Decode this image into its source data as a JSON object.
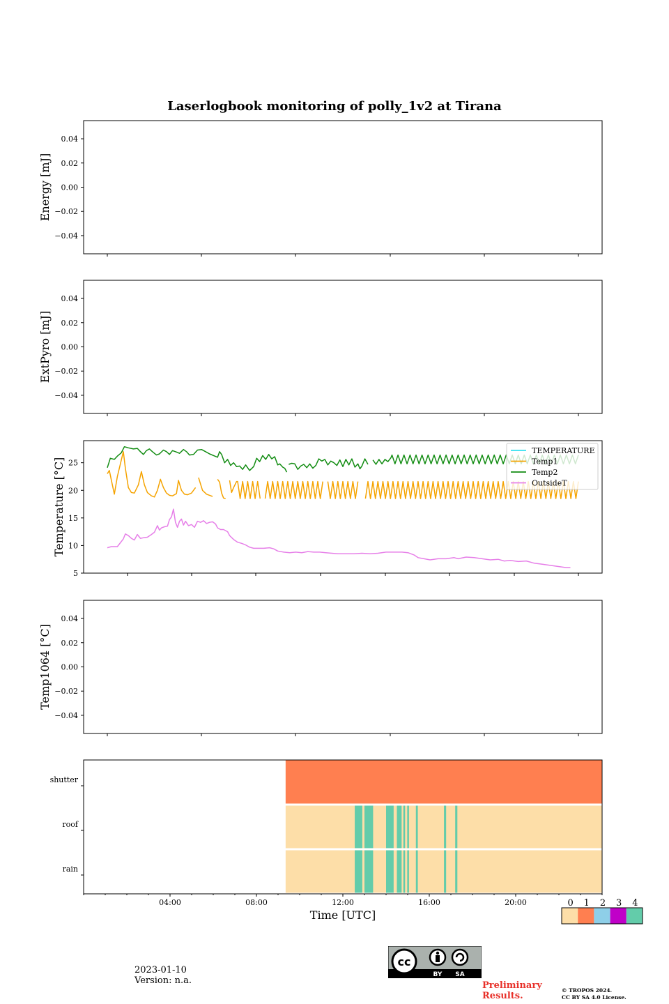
{
  "chart_data": [
    {
      "type": "line",
      "title": "Laserlogbook monitoring of polly_1v2 at Tirana",
      "ylabel": "Energy [mJ]",
      "yticks": [
        "0.04",
        "0.02",
        "0.00",
        "−0.02",
        "−0.04"
      ],
      "ylim": [
        -0.055,
        0.055
      ],
      "series": []
    },
    {
      "type": "line",
      "ylabel": "ExtPyro [mJ]",
      "yticks": [
        "0.04",
        "0.02",
        "0.00",
        "−0.02",
        "−0.04"
      ],
      "ylim": [
        -0.055,
        0.055
      ],
      "series": []
    },
    {
      "type": "line",
      "ylabel": "Temperature [°C]",
      "yticks": [
        "25",
        "20",
        "15",
        "10",
        "5"
      ],
      "ylim": [
        5,
        29
      ],
      "legend": "top-right",
      "xunit": "hours UTC",
      "series": [
        {
          "name": "TEMPERATURE",
          "color": "#33e0f0",
          "points": []
        },
        {
          "name": "Temp1",
          "color": "#f5a300",
          "points": [
            [
              0.5,
              23.0
            ],
            [
              0.6,
              23.6
            ],
            [
              0.75,
              21.0
            ],
            [
              0.85,
              19.3
            ],
            [
              1.0,
              22.5
            ],
            [
              1.2,
              25.5
            ],
            [
              1.3,
              27.0
            ],
            [
              1.4,
              24.0
            ],
            [
              1.55,
              20.5
            ],
            [
              1.7,
              19.6
            ],
            [
              1.85,
              19.5
            ],
            [
              2.05,
              21.0
            ],
            [
              2.2,
              23.4
            ],
            [
              2.35,
              21.0
            ],
            [
              2.5,
              19.6
            ],
            [
              2.7,
              19.0
            ],
            [
              2.85,
              18.8
            ],
            [
              3.0,
              20.0
            ],
            [
              3.15,
              22.0
            ],
            [
              3.3,
              20.5
            ],
            [
              3.45,
              19.5
            ],
            [
              3.6,
              19.1
            ],
            [
              3.75,
              19.0
            ],
            [
              3.95,
              19.4
            ],
            [
              4.05,
              21.8
            ],
            [
              4.2,
              20.0
            ],
            [
              4.35,
              19.3
            ],
            [
              4.5,
              19.2
            ],
            [
              4.7,
              19.5
            ],
            [
              4.9,
              20.5
            ],
            [
              4.95,
              null
            ],
            [
              5.05,
              22.3
            ],
            [
              5.25,
              20.0
            ],
            [
              5.45,
              19.3
            ],
            [
              5.6,
              19.1
            ],
            [
              5.75,
              18.9
            ],
            [
              5.85,
              null
            ],
            [
              6.0,
              22.0
            ],
            [
              6.1,
              21.5
            ],
            [
              6.2,
              19.5
            ],
            [
              6.3,
              18.6
            ],
            [
              6.4,
              18.5
            ],
            [
              6.5,
              null
            ],
            [
              6.6,
              21.8
            ],
            [
              6.7,
              19.6
            ],
            [
              6.8,
              20.5
            ],
            [
              6.95,
              21.6
            ]
          ],
          "oscillation": {
            "start": 7.0,
            "end": 24.0,
            "min": 18.5,
            "max": 21.6,
            "period_hours": 0.25,
            "gaps": [
              [
                8.2,
                8.35
              ],
              [
                11.3,
                11.45
              ],
              [
                13.1,
                13.25
              ]
            ]
          }
        },
        {
          "name": "Temp2",
          "color": "#128c12",
          "points": [
            [
              0.5,
              24.1
            ],
            [
              0.65,
              25.8
            ],
            [
              0.85,
              25.6
            ],
            [
              1.0,
              26.2
            ],
            [
              1.2,
              26.8
            ],
            [
              1.35,
              27.9
            ],
            [
              1.55,
              27.7
            ],
            [
              1.8,
              27.5
            ],
            [
              2.0,
              27.6
            ],
            [
              2.15,
              27.0
            ],
            [
              2.3,
              26.5
            ],
            [
              2.45,
              27.2
            ],
            [
              2.6,
              27.5
            ],
            [
              2.75,
              27.0
            ],
            [
              2.95,
              26.4
            ],
            [
              3.1,
              26.6
            ],
            [
              3.3,
              27.3
            ],
            [
              3.45,
              27.0
            ],
            [
              3.6,
              26.5
            ],
            [
              3.75,
              27.2
            ],
            [
              3.9,
              27.0
            ],
            [
              4.1,
              26.7
            ],
            [
              4.3,
              27.4
            ],
            [
              4.45,
              27.0
            ],
            [
              4.6,
              26.4
            ],
            [
              4.8,
              26.5
            ],
            [
              5.0,
              27.3
            ],
            [
              5.2,
              27.4
            ],
            [
              5.4,
              27.0
            ],
            [
              5.6,
              26.6
            ],
            [
              5.8,
              26.3
            ],
            [
              6.0,
              26.0
            ],
            [
              6.1,
              27.0
            ],
            [
              6.2,
              26.5
            ],
            [
              6.35,
              25.0
            ],
            [
              6.5,
              25.6
            ],
            [
              6.65,
              24.5
            ],
            [
              6.8,
              25.0
            ],
            [
              6.95,
              24.3
            ],
            [
              7.1,
              24.4
            ],
            [
              7.25,
              23.8
            ],
            [
              7.4,
              24.6
            ],
            [
              7.6,
              23.6
            ],
            [
              7.8,
              24.3
            ],
            [
              7.95,
              25.8
            ],
            [
              8.1,
              25.2
            ],
            [
              8.25,
              26.3
            ],
            [
              8.4,
              25.6
            ],
            [
              8.55,
              26.5
            ],
            [
              8.7,
              25.7
            ],
            [
              8.85,
              26.1
            ],
            [
              9.0,
              24.6
            ],
            [
              9.1,
              24.8
            ],
            [
              9.25,
              24.2
            ],
            [
              9.35,
              24.0
            ],
            [
              9.45,
              23.3
            ],
            [
              9.5,
              null
            ],
            [
              9.55,
              24.7
            ],
            [
              9.7,
              24.9
            ],
            [
              9.85,
              24.8
            ],
            [
              10.0,
              23.8
            ],
            [
              10.15,
              24.4
            ],
            [
              10.3,
              24.7
            ],
            [
              10.45,
              24.1
            ],
            [
              10.6,
              24.8
            ],
            [
              10.75,
              24.0
            ],
            [
              10.9,
              24.5
            ],
            [
              11.05,
              25.7
            ],
            [
              11.2,
              25.3
            ],
            [
              11.35,
              25.6
            ],
            [
              11.5,
              24.6
            ],
            [
              11.65,
              25.3
            ],
            [
              11.8,
              25.0
            ],
            [
              11.95,
              24.5
            ],
            [
              12.1,
              25.5
            ],
            [
              12.25,
              24.3
            ],
            [
              12.4,
              25.6
            ],
            [
              12.55,
              24.6
            ],
            [
              12.7,
              25.7
            ],
            [
              12.85,
              24.2
            ],
            [
              13.0,
              24.8
            ],
            [
              13.1,
              23.9
            ],
            [
              13.2,
              24.4
            ],
            [
              13.35,
              25.7
            ],
            [
              13.5,
              24.7
            ],
            [
              13.6,
              null
            ],
            [
              13.75,
              25.5
            ],
            [
              13.9,
              24.7
            ],
            [
              14.05,
              25.6
            ],
            [
              14.2,
              24.8
            ],
            [
              14.35,
              25.6
            ],
            [
              14.5,
              25.2
            ],
            [
              14.65,
              25.9
            ]
          ],
          "oscillation": {
            "start": 14.7,
            "end": 24.0,
            "min": 24.8,
            "max": 26.4,
            "period_hours": 0.3,
            "gaps": []
          }
        },
        {
          "name": "OutsideT",
          "color": "#e67fe8",
          "points": [
            [
              0.5,
              9.6
            ],
            [
              0.7,
              9.8
            ],
            [
              1.0,
              9.8
            ],
            [
              1.15,
              10.5
            ],
            [
              1.3,
              11.2
            ],
            [
              1.4,
              12.1
            ],
            [
              1.55,
              11.8
            ],
            [
              1.7,
              11.3
            ],
            [
              1.85,
              11.0
            ],
            [
              2.0,
              12.0
            ],
            [
              2.15,
              11.3
            ],
            [
              2.3,
              11.4
            ],
            [
              2.5,
              11.5
            ],
            [
              2.7,
              12.0
            ],
            [
              2.85,
              12.4
            ],
            [
              3.0,
              13.6
            ],
            [
              3.1,
              12.8
            ],
            [
              3.2,
              13.2
            ],
            [
              3.35,
              13.4
            ],
            [
              3.5,
              13.5
            ],
            [
              3.6,
              14.7
            ],
            [
              3.7,
              15.2
            ],
            [
              3.8,
              16.6
            ],
            [
              3.9,
              14.2
            ],
            [
              4.0,
              13.3
            ],
            [
              4.1,
              14.4
            ],
            [
              4.2,
              14.8
            ],
            [
              4.3,
              13.7
            ],
            [
              4.4,
              14.4
            ],
            [
              4.55,
              13.6
            ],
            [
              4.7,
              13.8
            ],
            [
              4.85,
              13.3
            ],
            [
              5.0,
              14.4
            ],
            [
              5.15,
              14.2
            ],
            [
              5.3,
              14.5
            ],
            [
              5.45,
              14.0
            ],
            [
              5.6,
              14.2
            ],
            [
              5.75,
              14.3
            ],
            [
              5.9,
              13.9
            ],
            [
              6.0,
              13.2
            ],
            [
              6.15,
              12.9
            ],
            [
              6.3,
              12.9
            ],
            [
              6.5,
              12.5
            ],
            [
              6.6,
              11.8
            ],
            [
              6.8,
              11.1
            ],
            [
              7.0,
              10.6
            ],
            [
              7.2,
              10.4
            ],
            [
              7.4,
              10.1
            ],
            [
              7.6,
              9.7
            ],
            [
              7.8,
              9.5
            ],
            [
              8.0,
              9.5
            ],
            [
              8.3,
              9.5
            ],
            [
              8.6,
              9.6
            ],
            [
              8.8,
              9.4
            ],
            [
              9.0,
              9.0
            ],
            [
              9.3,
              8.8
            ],
            [
              9.6,
              8.7
            ],
            [
              9.9,
              8.8
            ],
            [
              10.2,
              8.7
            ],
            [
              10.5,
              8.9
            ],
            [
              10.8,
              8.8
            ],
            [
              11.1,
              8.8
            ],
            [
              11.4,
              8.7
            ],
            [
              11.7,
              8.6
            ],
            [
              12.0,
              8.5
            ],
            [
              12.4,
              8.5
            ],
            [
              12.8,
              8.5
            ],
            [
              13.2,
              8.6
            ],
            [
              13.6,
              8.5
            ],
            [
              14.0,
              8.6
            ],
            [
              14.4,
              8.8
            ],
            [
              14.8,
              8.8
            ],
            [
              15.2,
              8.8
            ],
            [
              15.5,
              8.7
            ],
            [
              15.8,
              8.3
            ],
            [
              16.0,
              7.8
            ],
            [
              16.3,
              7.6
            ],
            [
              16.6,
              7.4
            ],
            [
              17.0,
              7.6
            ],
            [
              17.4,
              7.6
            ],
            [
              17.8,
              7.8
            ],
            [
              18.0,
              7.6
            ],
            [
              18.4,
              7.9
            ],
            [
              18.8,
              7.8
            ],
            [
              19.2,
              7.6
            ],
            [
              19.6,
              7.4
            ],
            [
              20.0,
              7.5
            ],
            [
              20.3,
              7.2
            ],
            [
              20.6,
              7.3
            ],
            [
              21.0,
              7.1
            ],
            [
              21.4,
              7.2
            ],
            [
              21.8,
              6.8
            ],
            [
              22.2,
              6.6
            ],
            [
              22.6,
              6.4
            ],
            [
              23.0,
              6.2
            ],
            [
              23.4,
              6.0
            ],
            [
              23.6,
              6.0
            ]
          ]
        }
      ]
    },
    {
      "type": "line",
      "ylabel": "Temp1064 [°C]",
      "yticks": [
        "0.04",
        "0.02",
        "0.00",
        "−0.02",
        "−0.04"
      ],
      "ylim": [
        -0.055,
        0.055
      ],
      "series": []
    },
    {
      "type": "heatmap",
      "xlabel": "Time [UTC]",
      "xticks": [
        "04:00",
        "08:00",
        "12:00",
        "16:00",
        "20:00"
      ],
      "xlim": [
        0,
        24
      ],
      "rows": [
        "shutter",
        "roof",
        "rain"
      ],
      "colorbar": {
        "labels": [
          "0",
          "1",
          "2",
          "3",
          "4"
        ],
        "colors": [
          "#fddea8",
          "#ff7f50",
          "#8ecfe8",
          "#c000c8",
          "#63ccaa"
        ]
      },
      "data_start_hour": 9.35,
      "shutter_value": 1,
      "background_value": 0,
      "events_value": 4,
      "event_intervals": [
        [
          12.55,
          12.9
        ],
        [
          13.0,
          13.4
        ],
        [
          14.0,
          14.35
        ],
        [
          14.5,
          14.72
        ],
        [
          14.8,
          14.88
        ],
        [
          14.98,
          15.06
        ],
        [
          15.38,
          15.47
        ],
        [
          16.68,
          16.78
        ],
        [
          17.2,
          17.3
        ]
      ]
    }
  ],
  "footer": {
    "date": "2023-01-10",
    "version": "Version: n.a.",
    "preliminary": "Preliminary Results.",
    "copyright_line1": "© TROPOS 2024.",
    "copyright_line2": "CC BY SA 4.0 License.",
    "cc_by": "BY",
    "cc_sa": "SA"
  }
}
